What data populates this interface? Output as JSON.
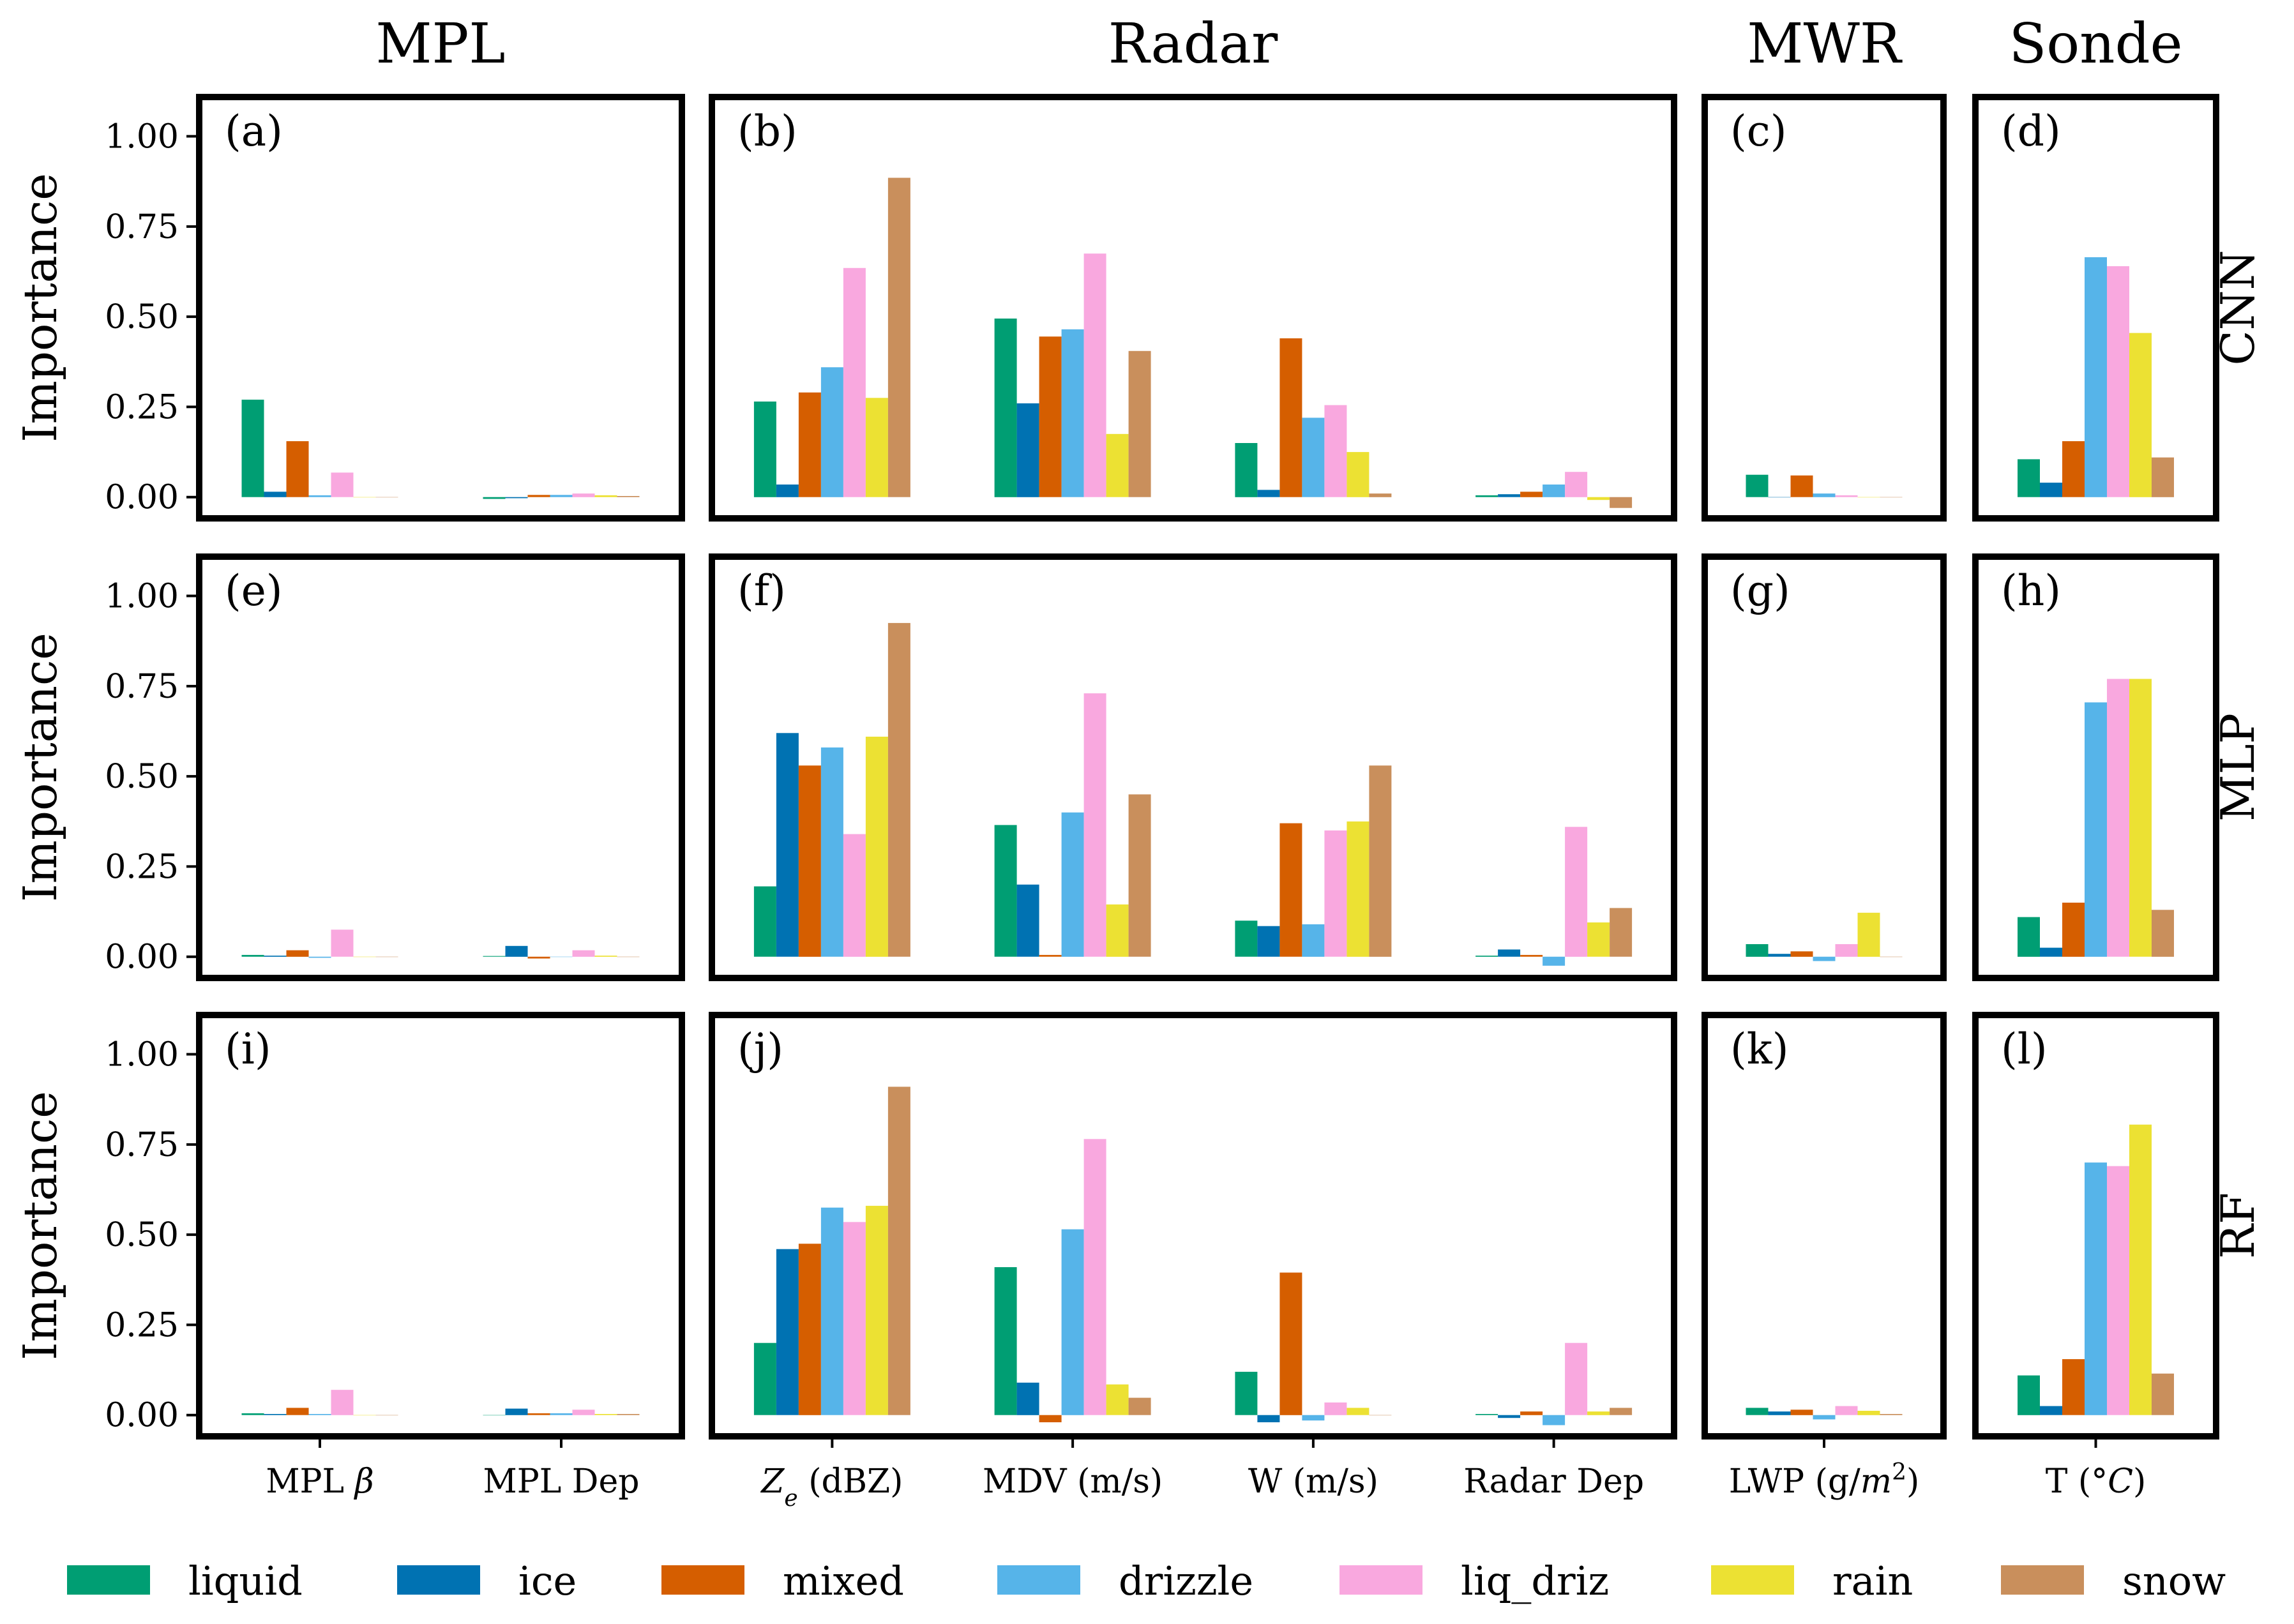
{
  "chart_data": {
    "type": "bar",
    "ylabel": "Importance",
    "ylim": [
      -0.05,
      1.1
    ],
    "yticks": [
      "0.00",
      "0.25",
      "0.50",
      "0.75",
      "1.00"
    ],
    "ytick_values": [
      0,
      0.25,
      0.5,
      0.75,
      1.0
    ],
    "groups": [
      {
        "name": "MPL",
        "xticks": [
          [
            "MPL ",
            "β"
          ],
          [
            "MPL Dep"
          ]
        ]
      },
      {
        "name": "Radar",
        "xticks": [
          [
            "Z",
            "e",
            " (dBZ)"
          ],
          [
            "MDV (m/s)"
          ],
          [
            "W (m/s)"
          ],
          [
            "Radar Dep"
          ]
        ]
      },
      {
        "name": "MWR",
        "xticks": [
          [
            "LWP (g/",
            "m",
            "2",
            ")"
          ]
        ]
      },
      {
        "name": "Sonde",
        "xticks": [
          [
            "T (°",
            "C",
            ")"
          ]
        ]
      }
    ],
    "models": [
      "CNN",
      "MLP",
      "RF"
    ],
    "series": [
      {
        "name": "liquid",
        "color": "#009E73"
      },
      {
        "name": "ice",
        "color": "#0072B2"
      },
      {
        "name": "mixed",
        "color": "#D55E00"
      },
      {
        "name": "drizzle",
        "color": "#56B4E9"
      },
      {
        "name": "liq_driz",
        "color": "#F9A8DF"
      },
      {
        "name": "rain",
        "color": "#ECE133"
      },
      {
        "name": "snow",
        "color": "#C98F5C"
      }
    ],
    "panels": [
      {
        "label": "(a)",
        "model": "CNN",
        "group": "MPL",
        "values": [
          [
            0.27,
            0.015,
            0.155,
            0.005,
            0.068,
            0.0,
            0.0
          ],
          [
            -0.005,
            -0.003,
            0.006,
            0.006,
            0.01,
            0.005,
            0.003
          ]
        ]
      },
      {
        "label": "(b)",
        "model": "CNN",
        "group": "Radar",
        "values": [
          [
            0.265,
            0.035,
            0.29,
            0.36,
            0.635,
            0.275,
            0.885
          ],
          [
            0.495,
            0.26,
            0.445,
            0.465,
            0.675,
            0.175,
            0.405
          ],
          [
            0.15,
            0.02,
            0.44,
            0.22,
            0.255,
            0.125,
            0.01
          ],
          [
            0.005,
            0.008,
            0.015,
            0.035,
            0.07,
            -0.008,
            -0.03
          ]
        ]
      },
      {
        "label": "(c)",
        "model": "CNN",
        "group": "MWR",
        "values": [
          [
            0.062,
            0.0,
            0.06,
            0.01,
            0.005,
            0.0,
            0.0
          ]
        ]
      },
      {
        "label": "(d)",
        "model": "CNN",
        "group": "Sonde",
        "values": [
          [
            0.105,
            0.04,
            0.155,
            0.665,
            0.64,
            0.455,
            0.11
          ]
        ]
      },
      {
        "label": "(e)",
        "model": "MLP",
        "group": "MPL",
        "values": [
          [
            0.005,
            0.003,
            0.018,
            -0.003,
            0.075,
            0.0,
            0.0
          ],
          [
            0.002,
            0.03,
            -0.005,
            0.0,
            0.018,
            0.003,
            0.0
          ]
        ]
      },
      {
        "label": "(f)",
        "model": "MLP",
        "group": "Radar",
        "values": [
          [
            0.195,
            0.62,
            0.53,
            0.58,
            0.34,
            0.61,
            0.925
          ],
          [
            0.365,
            0.2,
            0.005,
            0.4,
            0.73,
            0.145,
            0.45
          ],
          [
            0.1,
            0.085,
            0.37,
            0.09,
            0.35,
            0.375,
            0.53
          ],
          [
            0.003,
            0.02,
            0.005,
            -0.025,
            0.36,
            0.095,
            0.135
          ]
        ]
      },
      {
        "label": "(g)",
        "model": "MLP",
        "group": "MWR",
        "values": [
          [
            0.035,
            0.008,
            0.015,
            -0.012,
            0.035,
            0.122,
            0.0
          ]
        ]
      },
      {
        "label": "(h)",
        "model": "MLP",
        "group": "Sonde",
        "values": [
          [
            0.11,
            0.025,
            0.15,
            0.705,
            0.77,
            0.77,
            0.13
          ]
        ]
      },
      {
        "label": "(i)",
        "model": "RF",
        "group": "MPL",
        "values": [
          [
            0.005,
            0.003,
            0.02,
            0.003,
            0.07,
            0.0,
            0.0
          ],
          [
            0.0,
            0.018,
            0.005,
            0.005,
            0.015,
            0.003,
            0.003
          ]
        ]
      },
      {
        "label": "(j)",
        "model": "RF",
        "group": "Radar",
        "values": [
          [
            0.2,
            0.46,
            0.475,
            0.575,
            0.535,
            0.58,
            0.91
          ],
          [
            0.41,
            0.09,
            -0.02,
            0.515,
            0.765,
            0.085,
            0.048
          ],
          [
            0.12,
            -0.02,
            0.395,
            -0.015,
            0.035,
            0.02,
            0.0
          ],
          [
            0.003,
            -0.008,
            0.01,
            -0.028,
            0.2,
            0.01,
            0.02
          ]
        ]
      },
      {
        "label": "(k)",
        "model": "RF",
        "group": "MWR",
        "values": [
          [
            0.02,
            0.01,
            0.015,
            -0.012,
            0.025,
            0.012,
            0.003
          ]
        ]
      },
      {
        "label": "(l)",
        "model": "RF",
        "group": "Sonde",
        "values": [
          [
            0.11,
            0.025,
            0.155,
            0.7,
            0.69,
            0.805,
            0.115
          ]
        ]
      }
    ],
    "legend_placement": "bottom",
    "grid": false
  }
}
